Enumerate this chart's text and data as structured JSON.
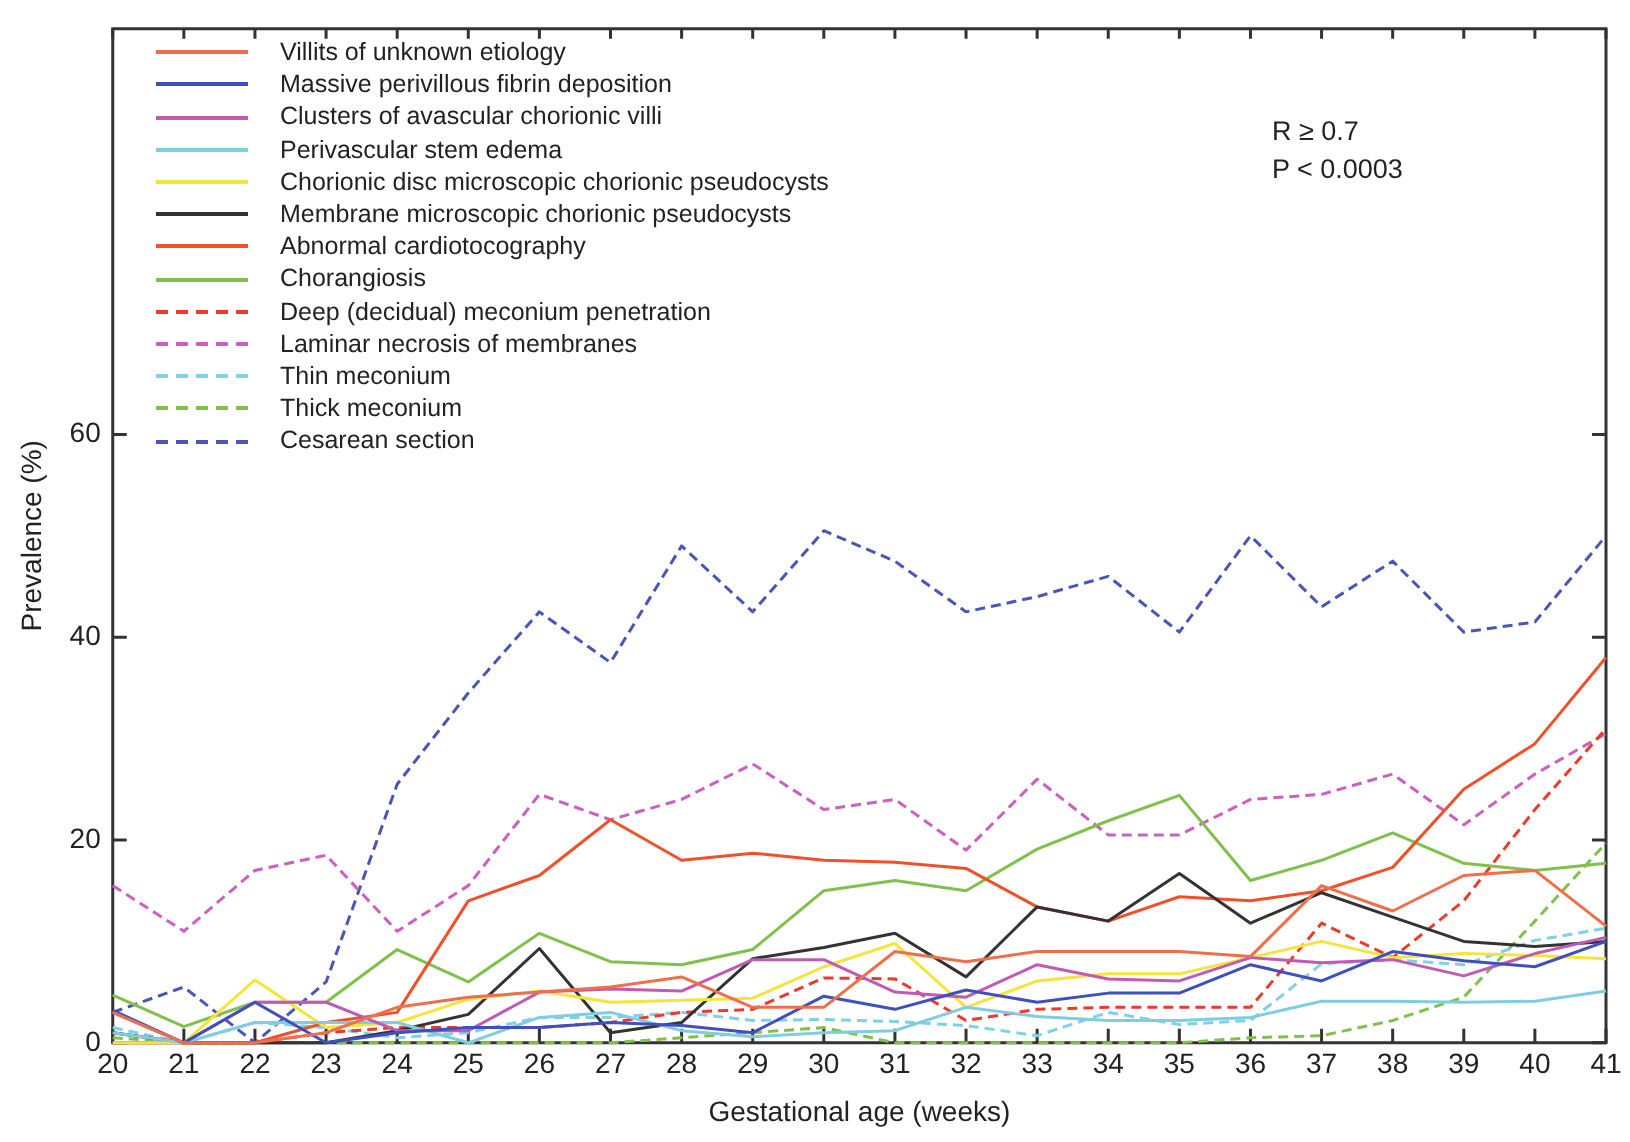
{
  "chart_data": {
    "type": "line",
    "xlabel": "Gestational age (weeks)",
    "ylabel": "Prevalence (%)",
    "x": [
      20,
      21,
      22,
      23,
      24,
      25,
      26,
      27,
      28,
      29,
      30,
      31,
      32,
      33,
      34,
      35,
      36,
      37,
      38,
      39,
      40,
      41
    ],
    "xlim": [
      20,
      41
    ],
    "xticks": [
      20,
      21,
      22,
      23,
      24,
      25,
      26,
      27,
      28,
      29,
      30,
      31,
      32,
      33,
      34,
      35,
      36,
      37,
      38,
      39,
      40,
      41
    ],
    "ylim": [
      0,
      100
    ],
    "yticks": [
      0,
      20,
      40,
      60
    ],
    "grid": false,
    "legend": "top left",
    "marker": "none",
    "annotations": [
      "R ≥ 0.7",
      "P < 0.0003"
    ],
    "series": [
      {
        "name": "Villits of unknown etiology",
        "color": "#ef6f4a",
        "line_style": "solid",
        "values": [
          3,
          0,
          0,
          1,
          3.5,
          4.5,
          5,
          5.5,
          6.5,
          3.5,
          3.5,
          9,
          8,
          9,
          9,
          9,
          8.5,
          15.5,
          13,
          16.5,
          17,
          11.5
        ]
      },
      {
        "name": "Massive perivillous fibrin deposition",
        "color": "#3f4fbf",
        "line_style": "solid",
        "values": [
          3.2,
          0,
          4,
          0,
          1,
          1.5,
          1.5,
          2,
          1.7,
          1,
          4.6,
          3.3,
          5.2,
          4,
          4.9,
          4.9,
          7.7,
          6.1,
          9,
          8.1,
          7.5,
          10
        ]
      },
      {
        "name": "Clusters of avascular chorionic villi",
        "color": "#c05ab5",
        "line_style": "solid",
        "values": [
          3,
          0,
          4,
          4,
          1.2,
          1.2,
          5,
          5.3,
          5.1,
          8.2,
          8.2,
          5,
          4.5,
          7.7,
          6.3,
          6.1,
          8.4,
          7.9,
          8.2,
          6.6,
          8.8,
          10.4
        ]
      },
      {
        "name": "Perivascular stem edema",
        "color": "#80cce0",
        "line_style": "solid",
        "values": [
          1,
          0,
          2,
          2,
          2,
          0,
          2.5,
          3,
          1.2,
          0.6,
          1,
          1.2,
          3.5,
          2.6,
          2.2,
          2.2,
          2.5,
          4.1,
          4.1,
          4,
          4.1,
          5.1
        ]
      },
      {
        "name": "Chorionic disc microscopic chorionic pseudocysts",
        "color": "#f5e53a",
        "line_style": "solid",
        "values": [
          0,
          0,
          6.2,
          1.5,
          2,
          4.3,
          5.1,
          4,
          4.2,
          4.4,
          7.5,
          9.8,
          3.5,
          6.1,
          6.8,
          6.8,
          8.4,
          10,
          8.4,
          8.8,
          8.6,
          8.3
        ]
      },
      {
        "name": "Membrane microscopic chorionic pseudocysts",
        "color": "#333333",
        "line_style": "solid",
        "values": [
          1,
          0,
          0,
          0,
          1.2,
          2.8,
          9.3,
          1,
          2,
          8.3,
          9.4,
          10.8,
          6.5,
          13.4,
          12,
          16.7,
          11.8,
          14.8,
          12.4,
          10,
          9.5,
          10
        ]
      },
      {
        "name": "Abnormal cardiotocography",
        "color": "#f0512a",
        "line_style": "solid",
        "values": [
          0,
          0,
          0,
          2,
          3,
          14,
          16.5,
          22,
          18,
          18.7,
          18,
          17.8,
          17.2,
          13.4,
          12,
          14.4,
          14,
          15,
          17.3,
          25,
          29.5,
          38
        ]
      },
      {
        "name": "Chorangiosis",
        "color": "#7fc14a",
        "line_style": "solid",
        "values": [
          4.7,
          1.6,
          4,
          4,
          9.2,
          6,
          10.8,
          8,
          7.7,
          9.2,
          15,
          16,
          15,
          19.1,
          21.9,
          24.4,
          16,
          18,
          20.7,
          17.7,
          17,
          17.7
        ]
      },
      {
        "name": "Deep (decidual) meconium penetration",
        "color": "#ee3a2a",
        "line_style": "dashed",
        "values": [
          1,
          0,
          0,
          1,
          1.5,
          1.5,
          1.5,
          2,
          3,
          3.3,
          6.4,
          6.3,
          2.2,
          3.3,
          3.5,
          3.5,
          3.5,
          11.8,
          8.4,
          14,
          23,
          31
        ]
      },
      {
        "name": "Laminar necrosis of membranes",
        "color": "#cc5fbf",
        "line_style": "dashed",
        "values": [
          15.5,
          11,
          17,
          18.5,
          11,
          15.5,
          24.5,
          22,
          24,
          27.5,
          23,
          24,
          19,
          26,
          20.5,
          20.5,
          24,
          24.5,
          26.5,
          21.5,
          26.5,
          30.5
        ]
      },
      {
        "name": "Thin meconium",
        "color": "#80d0e8",
        "line_style": "dashed",
        "values": [
          1.5,
          0,
          2,
          1.5,
          0.5,
          1,
          2.5,
          2.5,
          3,
          2.2,
          2.3,
          2.1,
          1.7,
          0.7,
          3,
          1.8,
          2.2,
          7.8,
          8.2,
          7.7,
          10.1,
          11.3
        ]
      },
      {
        "name": "Thick meconium",
        "color": "#7fc14a",
        "line_style": "dashed",
        "values": [
          0.5,
          0,
          0,
          0,
          0,
          0,
          0,
          0,
          0.5,
          1,
          1.5,
          0,
          0,
          0,
          0,
          0,
          0.5,
          0.7,
          2.2,
          4.5,
          12,
          19.7
        ]
      },
      {
        "name": "Cesarean section",
        "color": "#4a55b5",
        "line_style": "dashed",
        "values": [
          3,
          5.5,
          0,
          6,
          25.5,
          34.5,
          42.5,
          37.5,
          49,
          42.5,
          50.5,
          47.5,
          42.5,
          44,
          46,
          40.5,
          50,
          43,
          47.5,
          40.5,
          41.5,
          50
        ]
      }
    ]
  }
}
